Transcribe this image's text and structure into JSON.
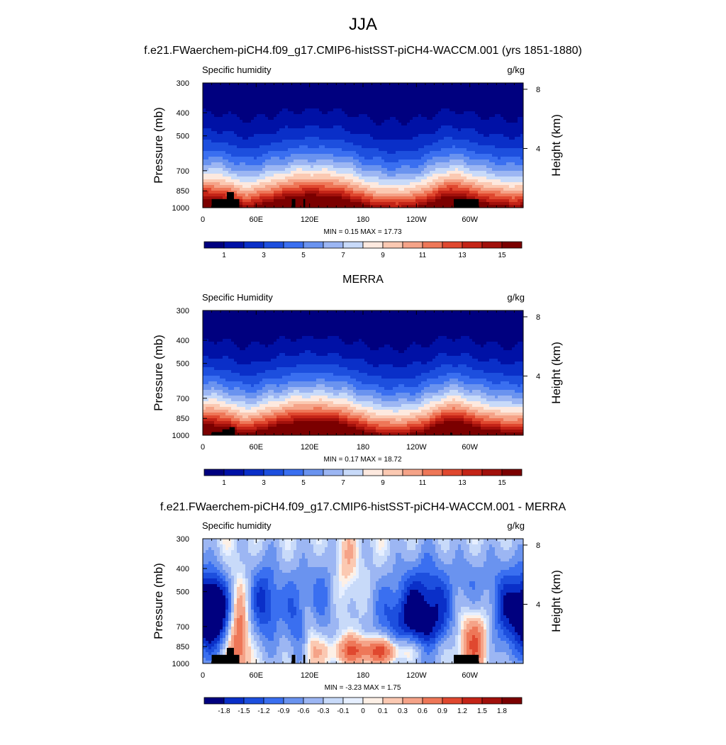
{
  "figure": {
    "title": "JJA",
    "model_title": "f.e21.FWaerchem-piCH4.f09_g17.CMIP6-histSST-piCH4-WACCM.001 (yrs 1851-1880)",
    "merra_title": "MERRA",
    "diff_title": "f.e21.FWaerchem-piCH4.f09_g17.CMIP6-histSST-piCH4-WACCM.001 - MERRA"
  },
  "palettes": {
    "sequential": [
      "#00007f",
      "#0011a6",
      "#0a2fc8",
      "#1d4fde",
      "#3a6ff0",
      "#6a93ef",
      "#9cb6f3",
      "#c8daf9",
      "#fde9df",
      "#fbc9b2",
      "#f5a388",
      "#ee7758",
      "#e0482f",
      "#c42417",
      "#a1100b",
      "#7b0000"
    ],
    "diverging": [
      "#00007f",
      "#0a2fc8",
      "#1d4fde",
      "#3a6ff0",
      "#6a93ef",
      "#9cb6f3",
      "#c8daf9",
      "#e6efff",
      "#fdf0e6",
      "#fbc9b2",
      "#f5a388",
      "#ee7758",
      "#e0482f",
      "#c42417",
      "#a1100b",
      "#7b0000"
    ],
    "topography": "#000000"
  },
  "chart_data": [
    {
      "type": "heatmap",
      "panel": "model",
      "variable_label": "Specific humidity",
      "units": "g/kg",
      "ylabel": "Pressure (mb)",
      "ylabel_right": "Height (km)",
      "x_ticks": [
        "0",
        "60E",
        "120E",
        "180",
        "120W",
        "60W"
      ],
      "x_tick_values": [
        0,
        60,
        120,
        180,
        240,
        300
      ],
      "xlim": [
        0,
        360
      ],
      "y_ticks": [
        "300",
        "400",
        "500",
        "700",
        "850",
        "1000"
      ],
      "y_tick_values": [
        300,
        400,
        500,
        700,
        850,
        1000
      ],
      "ylim": [
        1000,
        300
      ],
      "y_scale": "log-pressure",
      "right_ticks": [
        "8",
        "4"
      ],
      "right_tick_values": [
        8,
        4
      ],
      "stats_text": "MIN =   0.15  MAX =   17.73",
      "min": 0.15,
      "max": 17.73,
      "colorbar": {
        "levels": [
          0,
          1,
          2,
          3,
          4,
          5,
          6,
          7,
          8,
          9,
          10,
          11,
          12,
          13,
          14,
          15,
          16
        ],
        "tick_labels": [
          "1",
          "3",
          "5",
          "7",
          "9",
          "11",
          "13",
          "15"
        ],
        "tick_values": [
          1,
          3,
          5,
          7,
          9,
          11,
          13,
          15
        ]
      },
      "field": {
        "mode": "humidity",
        "seed": 1
      },
      "terrain": [
        {
          "lon0": 10,
          "lon1": 41,
          "top_mb": 920
        },
        {
          "lon0": 27,
          "lon1": 35,
          "top_mb": 860
        },
        {
          "lon0": 100,
          "lon1": 104,
          "top_mb": 920
        },
        {
          "lon0": 113,
          "lon1": 115,
          "top_mb": 920
        },
        {
          "lon0": 282,
          "lon1": 310,
          "top_mb": 920
        }
      ]
    },
    {
      "type": "heatmap",
      "panel": "merra",
      "variable_label": "Specific Humidity",
      "units": "g/kg",
      "ylabel": "Pressure (mb)",
      "ylabel_right": "Height (km)",
      "x_ticks": [
        "0",
        "60E",
        "120E",
        "180",
        "120W",
        "60W"
      ],
      "x_tick_values": [
        0,
        60,
        120,
        180,
        240,
        300
      ],
      "xlim": [
        0,
        360
      ],
      "y_ticks": [
        "300",
        "400",
        "500",
        "700",
        "850",
        "1000"
      ],
      "y_tick_values": [
        300,
        400,
        500,
        700,
        850,
        1000
      ],
      "ylim": [
        1000,
        300
      ],
      "y_scale": "log-pressure",
      "right_ticks": [
        "8",
        "4"
      ],
      "right_tick_values": [
        8,
        4
      ],
      "stats_text": "MIN =   0.17  MAX =   18.72",
      "min": 0.17,
      "max": 18.72,
      "colorbar": {
        "levels": [
          0,
          1,
          2,
          3,
          4,
          5,
          6,
          7,
          8,
          9,
          10,
          11,
          12,
          13,
          14,
          15,
          16
        ],
        "tick_labels": [
          "1",
          "3",
          "5",
          "7",
          "9",
          "11",
          "13",
          "15"
        ],
        "tick_values": [
          1,
          3,
          5,
          7,
          9,
          11,
          13,
          15
        ]
      },
      "field": {
        "mode": "humidity",
        "seed": 2
      },
      "terrain": [
        {
          "lon0": 10,
          "lon1": 34,
          "top_mb": 970
        },
        {
          "lon0": 22,
          "lon1": 30,
          "top_mb": 945
        },
        {
          "lon0": 30,
          "lon1": 36,
          "top_mb": 925
        },
        {
          "lon0": 278,
          "lon1": 280,
          "top_mb": 975
        }
      ]
    },
    {
      "type": "heatmap",
      "panel": "difference",
      "variable_label": "Specific humidity",
      "units": "g/kg",
      "ylabel": "Pressure (mb)",
      "ylabel_right": "Height (km)",
      "x_ticks": [
        "0",
        "60E",
        "120E",
        "180",
        "120W",
        "60W"
      ],
      "x_tick_values": [
        0,
        60,
        120,
        180,
        240,
        300
      ],
      "xlim": [
        0,
        360
      ],
      "y_ticks": [
        "300",
        "400",
        "500",
        "700",
        "850",
        "1000"
      ],
      "y_tick_values": [
        300,
        400,
        500,
        700,
        850,
        1000
      ],
      "ylim": [
        1000,
        300
      ],
      "y_scale": "log-pressure",
      "right_ticks": [
        "8",
        "4"
      ],
      "right_tick_values": [
        8,
        4
      ],
      "stats_text": "MIN =  -3.23  MAX =    1.75",
      "min": -3.23,
      "max": 1.75,
      "colorbar": {
        "levels": [
          -2.1,
          -1.8,
          -1.5,
          -1.2,
          -0.9,
          -0.6,
          -0.3,
          -0.1,
          0,
          0.1,
          0.3,
          0.6,
          0.9,
          1.2,
          1.5,
          1.8,
          2.1
        ],
        "tick_labels": [
          "-1.8",
          "-1.5",
          "-1.2",
          "-0.9",
          "-0.6",
          "-0.3",
          "-0.1",
          "0",
          "0.1",
          "0.3",
          "0.6",
          "0.9",
          "1.2",
          "1.5",
          "1.8"
        ],
        "tick_values": [
          -1.8,
          -1.5,
          -1.2,
          -0.9,
          -0.6,
          -0.3,
          -0.1,
          0,
          0.1,
          0.3,
          0.6,
          0.9,
          1.2,
          1.5,
          1.8
        ]
      },
      "field": {
        "mode": "difference",
        "anomalies": [
          {
            "lon": 12,
            "mb": 600,
            "amp": -2.6,
            "wx": 14,
            "wy": 0.25
          },
          {
            "lon": 40,
            "mb": 780,
            "amp": 1.3,
            "wx": 9,
            "wy": 0.35
          },
          {
            "lon": 70,
            "mb": 550,
            "amp": -1.4,
            "wx": 14,
            "wy": 0.3
          },
          {
            "lon": 105,
            "mb": 650,
            "amp": -0.9,
            "wx": 10,
            "wy": 0.35
          },
          {
            "lon": 120,
            "mb": 820,
            "amp": 0.5,
            "wx": 6,
            "wy": 0.25
          },
          {
            "lon": 135,
            "mb": 520,
            "amp": -0.8,
            "wx": 15,
            "wy": 0.3
          },
          {
            "lon": 160,
            "mb": 420,
            "amp": 0.5,
            "wx": 10,
            "wy": 0.3
          },
          {
            "lon": 200,
            "mb": 880,
            "amp": 1.4,
            "wx": 40,
            "wy": 0.1
          },
          {
            "lon": 215,
            "mb": 620,
            "amp": -0.7,
            "wx": 25,
            "wy": 0.3
          },
          {
            "lon": 250,
            "mb": 680,
            "amp": -1.5,
            "wx": 25,
            "wy": 0.3
          },
          {
            "lon": 255,
            "mb": 450,
            "amp": -0.6,
            "wx": 20,
            "wy": 0.3
          },
          {
            "lon": 305,
            "mb": 760,
            "amp": 1.3,
            "wx": 15,
            "wy": 0.25
          },
          {
            "lon": 340,
            "mb": 600,
            "amp": -1.4,
            "wx": 18,
            "wy": 0.35
          },
          {
            "lon": 300,
            "mb": 480,
            "amp": -0.6,
            "wx": 12,
            "wy": 0.25
          }
        ]
      },
      "terrain": [
        {
          "lon0": 10,
          "lon1": 41,
          "top_mb": 920
        },
        {
          "lon0": 27,
          "lon1": 35,
          "top_mb": 860
        },
        {
          "lon0": 100,
          "lon1": 104,
          "top_mb": 920
        },
        {
          "lon0": 113,
          "lon1": 115,
          "top_mb": 920
        },
        {
          "lon0": 282,
          "lon1": 310,
          "top_mb": 920
        }
      ]
    }
  ]
}
